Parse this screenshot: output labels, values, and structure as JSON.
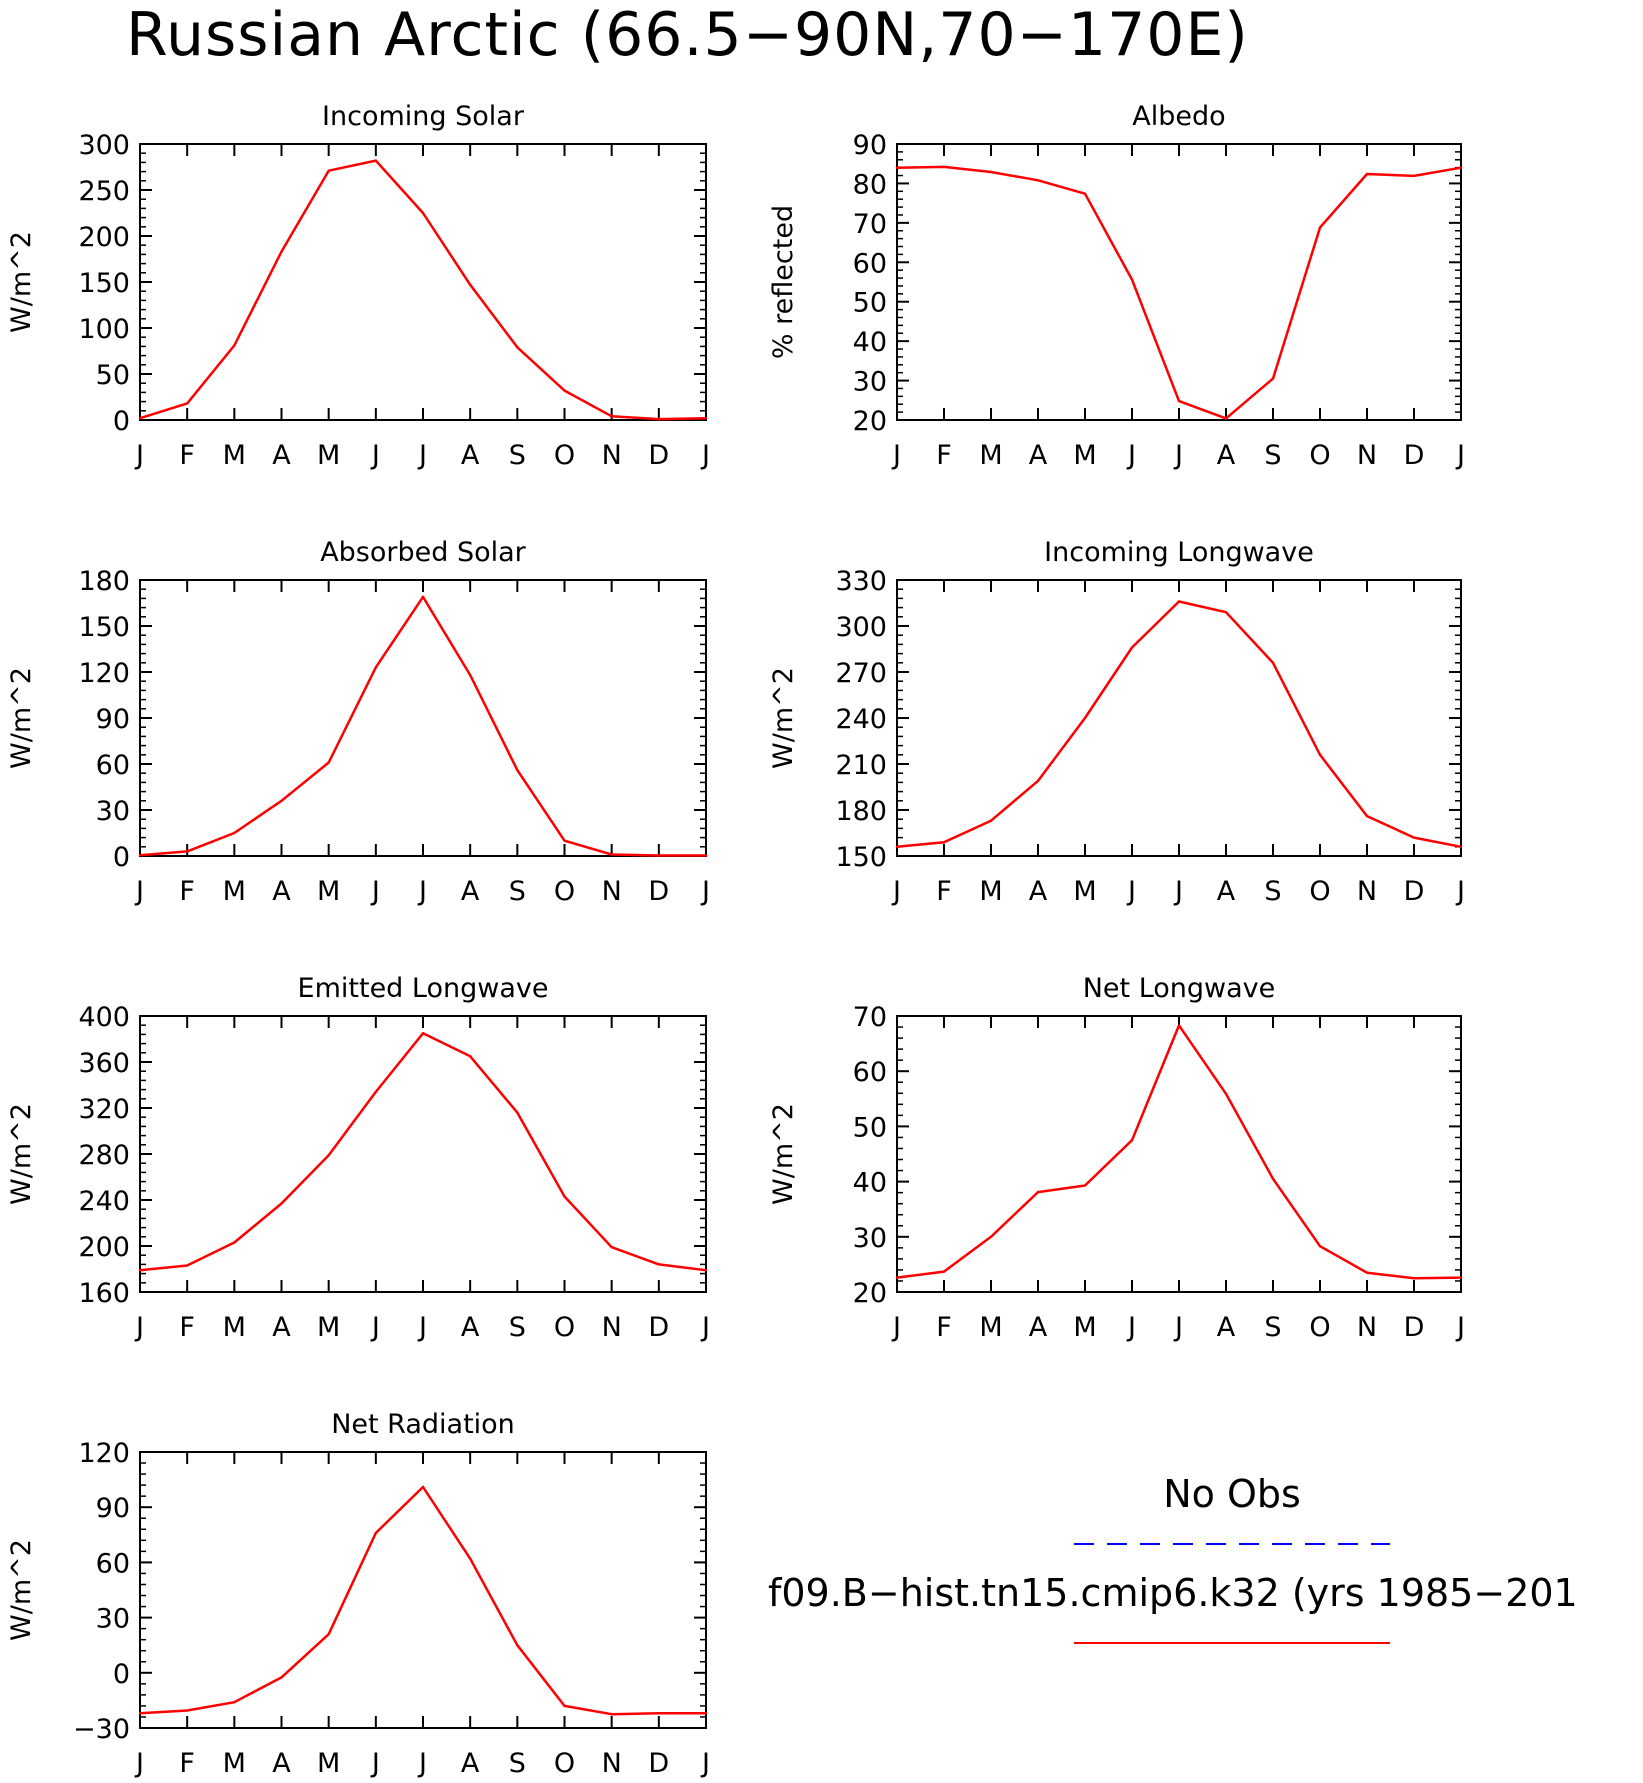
{
  "title": "Russian Arctic (66.5−90N,70−170E)",
  "months": [
    "J",
    "F",
    "M",
    "A",
    "M",
    "J",
    "J",
    "A",
    "S",
    "O",
    "N",
    "D",
    "J"
  ],
  "line_color": "#ff0000",
  "obs_color": "#0000ff",
  "legend": {
    "obs_label": "No Obs",
    "model_label": "f09.B−hist.tn15.cmip6.k32 (yrs 1985−201"
  },
  "chart_data": [
    {
      "type": "line",
      "title": "Incoming Solar",
      "ylabel": "W/m^2",
      "ylim": [
        0,
        300
      ],
      "yticks": [
        "0",
        "50",
        "100",
        "150",
        "200",
        "250",
        "300"
      ],
      "series": [
        {
          "values": [
            2,
            18,
            81,
            183,
            271,
            282,
            225,
            147,
            79,
            32,
            4,
            1,
            2
          ]
        }
      ]
    },
    {
      "type": "line",
      "title": "Albedo",
      "ylabel": "% reflected",
      "ylim": [
        20,
        90
      ],
      "yticks": [
        "20",
        "30",
        "40",
        "50",
        "60",
        "70",
        "80",
        "90"
      ],
      "series": [
        {
          "values": [
            84,
            84.2,
            82.9,
            80.8,
            77.4,
            55.6,
            24.8,
            20.4,
            30.5,
            68.8,
            82.4,
            81.9,
            84
          ]
        }
      ]
    },
    {
      "type": "line",
      "title": "Absorbed Solar",
      "ylabel": "W/m^2",
      "ylim": [
        0,
        180
      ],
      "yticks": [
        "0",
        "30",
        "60",
        "90",
        "120",
        "150",
        "180"
      ],
      "series": [
        {
          "values": [
            0.5,
            3,
            15,
            36,
            61,
            123,
            169,
            118,
            56,
            10,
            1,
            0.3,
            0.3
          ]
        }
      ]
    },
    {
      "type": "line",
      "title": "Incoming Longwave",
      "ylabel": "W/m^2",
      "ylim": [
        150,
        330
      ],
      "yticks": [
        "150",
        "180",
        "210",
        "240",
        "270",
        "300",
        "330"
      ],
      "series": [
        {
          "values": [
            156,
            159,
            173,
            199,
            240,
            286,
            316,
            309,
            276,
            216,
            176,
            162,
            156
          ]
        }
      ]
    },
    {
      "type": "line",
      "title": "Emitted Longwave",
      "ylabel": "W/m^2",
      "ylim": [
        160,
        400
      ],
      "yticks": [
        "160",
        "200",
        "240",
        "280",
        "320",
        "360",
        "400"
      ],
      "series": [
        {
          "values": [
            179,
            183,
            203,
            237,
            279,
            334,
            385,
            365,
            316,
            243,
            199,
            184,
            179
          ]
        }
      ]
    },
    {
      "type": "line",
      "title": "Net Longwave",
      "ylabel": "W/m^2",
      "ylim": [
        20,
        70
      ],
      "yticks": [
        "20",
        "30",
        "40",
        "50",
        "60",
        "70"
      ],
      "series": [
        {
          "values": [
            22.6,
            23.7,
            30,
            38.1,
            39.3,
            47.5,
            68.3,
            55.9,
            40.5,
            28.3,
            23.5,
            22.5,
            22.6
          ]
        }
      ]
    },
    {
      "type": "line",
      "title": "Net Radiation",
      "ylabel": "W/m^2",
      "ylim": [
        -30,
        120
      ],
      "yticks": [
        "−30",
        "0",
        "30",
        "60",
        "90",
        "120"
      ],
      "series": [
        {
          "values": [
            -22,
            -20.5,
            -16,
            -2.5,
            21,
            76,
            101,
            62,
            15,
            -18,
            -22.5,
            -22,
            -22
          ]
        }
      ]
    }
  ]
}
